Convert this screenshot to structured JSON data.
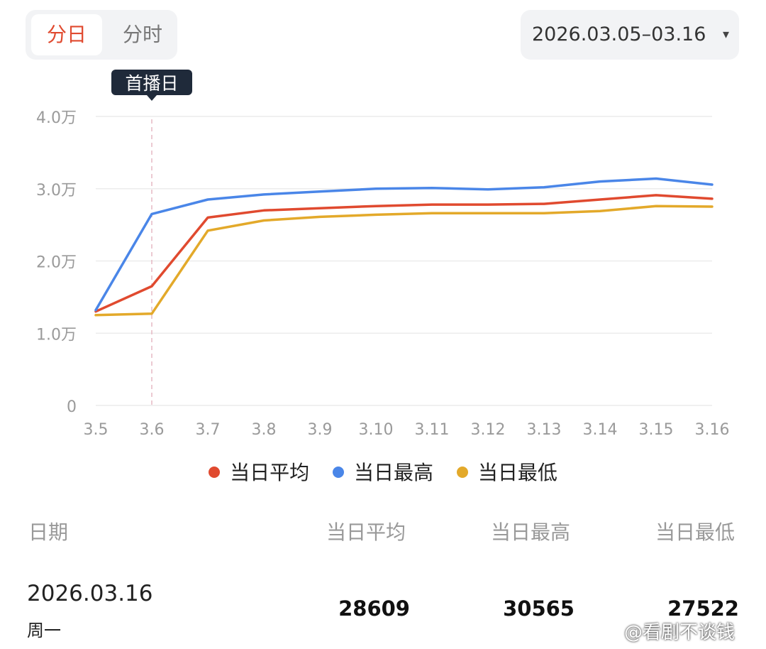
{
  "tabs": [
    {
      "label": "分日",
      "active": true
    },
    {
      "label": "分时",
      "active": false
    }
  ],
  "date_range": {
    "label": "2026.03.05–03.16",
    "caret": "▾"
  },
  "chart_data": {
    "type": "line",
    "x": [
      "3.5",
      "3.6",
      "3.7",
      "3.8",
      "3.9",
      "3.10",
      "3.11",
      "3.12",
      "3.13",
      "3.14",
      "3.15",
      "3.16"
    ],
    "y_ticks": [
      {
        "value": 0,
        "label": "0"
      },
      {
        "value": 10000,
        "label": "1.0万"
      },
      {
        "value": 20000,
        "label": "2.0万"
      },
      {
        "value": 30000,
        "label": "3.0万"
      },
      {
        "value": 40000,
        "label": "4.0万"
      }
    ],
    "ylim": [
      0,
      40000
    ],
    "grid": true,
    "legend_position": "bottom",
    "annotation": {
      "label": "首播日",
      "x": "3.6"
    },
    "series": [
      {
        "name": "当日平均",
        "color": "#e04a2f",
        "values": [
          13000,
          16500,
          26000,
          27000,
          27300,
          27600,
          27800,
          27800,
          27900,
          28500,
          29100,
          28609
        ]
      },
      {
        "name": "当日最高",
        "color": "#4a86e8",
        "values": [
          13200,
          26500,
          28500,
          29200,
          29600,
          30000,
          30100,
          29900,
          30200,
          31000,
          31400,
          30565
        ]
      },
      {
        "name": "当日最低",
        "color": "#e3a92a",
        "values": [
          12500,
          12700,
          24200,
          25600,
          26100,
          26400,
          26600,
          26600,
          26600,
          26900,
          27600,
          27522
        ]
      }
    ]
  },
  "table": {
    "headers": {
      "date": "日期",
      "avg": "当日平均",
      "max": "当日最高",
      "min": "当日最低"
    },
    "rows": [
      {
        "date": "2026.03.16",
        "weekday": "周一",
        "avg": "28609",
        "max": "30565",
        "min": "27522"
      }
    ]
  },
  "watermark": "@看剧不谈钱"
}
